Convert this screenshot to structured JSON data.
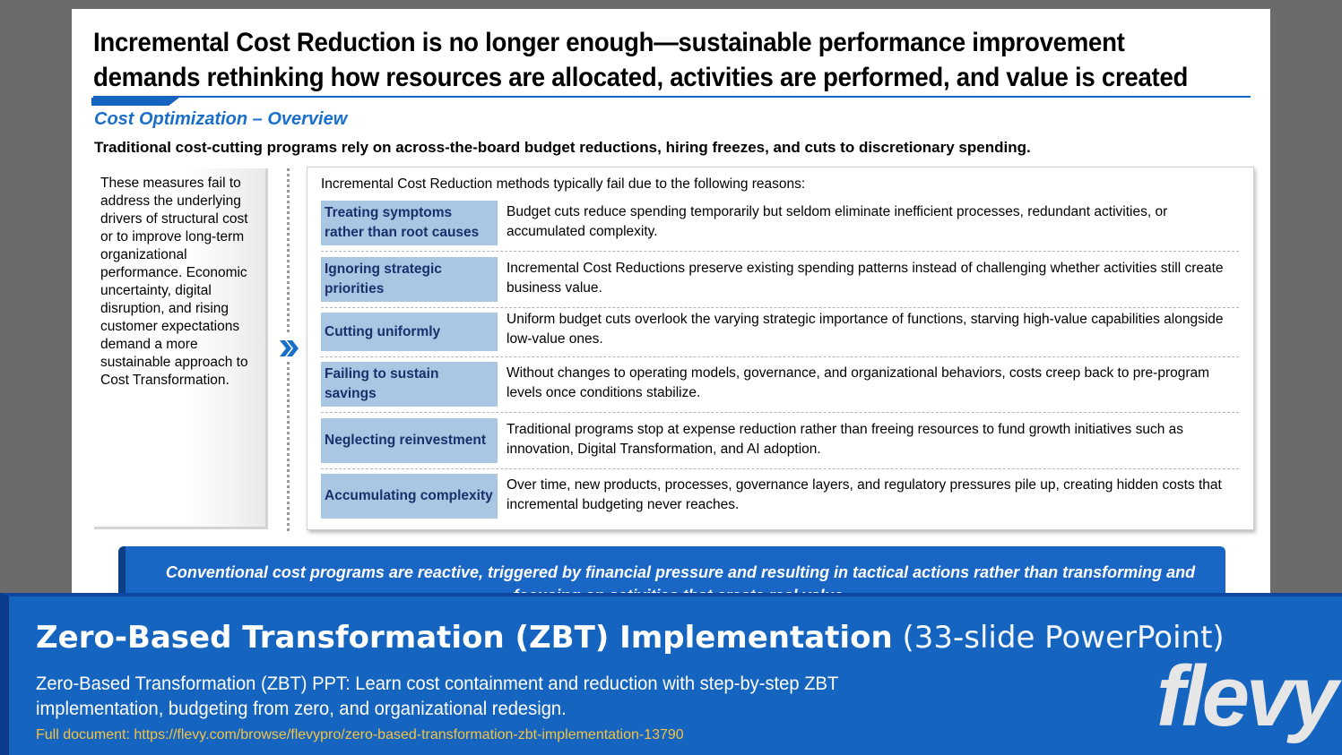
{
  "slide": {
    "headline_line1": "Incremental Cost Reduction is no longer enough—sustainable performance improvement",
    "headline_line2": "demands rethinking how resources are allocated, activities are performed, and value is created",
    "subtitle": "Cost Optimization – Overview",
    "lead": "Traditional cost-cutting programs rely on across-the-board budget reductions, hiring freezes, and cuts to discretionary spending.",
    "left_text": "These measures fail to address the underlying drivers of structural cost or to improve long-term organizational performance. Economic uncertainty, digital disruption, and rising customer expectations demand a more sustainable approach to Cost Transformation.",
    "right_intro": "Incremental Cost Reduction methods typically fail due to the following reasons:",
    "reasons": [
      {
        "label": "Treating symptoms rather than root causes",
        "desc": "Budget cuts reduce spending temporarily but seldom eliminate inefficient processes, redundant activities, or accumulated complexity."
      },
      {
        "label": "Ignoring strategic priorities",
        "desc": "Incremental Cost Reductions preserve existing spending patterns instead of challenging whether activities still create business value."
      },
      {
        "label": "Cutting uniformly",
        "desc": "Uniform budget cuts overlook the varying strategic importance of functions, starving high-value capabilities alongside low-value ones."
      },
      {
        "label": "Failing to sustain savings",
        "desc": "Without changes to operating models, governance, and organizational behaviors, costs creep back to pre-program levels once conditions stabilize."
      },
      {
        "label": "Neglecting reinvestment",
        "desc": "Traditional programs stop at expense reduction rather than freeing resources to fund growth initiatives such as innovation, Digital Transformation, and AI adoption."
      },
      {
        "label": "Accumulating complexity",
        "desc": "Over time, new products, processes, governance layers, and regulatory pressures pile up, creating hidden costs that incremental budgeting never reaches."
      }
    ],
    "callout": "Conventional cost programs are reactive, triggered by financial pressure and resulting in tactical actions rather than transforming and focusing on activities that create real value."
  },
  "banner": {
    "title_bold": "Zero-Based Transformation (ZBT) Implementation",
    "title_light": "(33-slide PowerPoint)",
    "description": "Zero-Based Transformation (ZBT) PPT: Learn cost containment and reduction with step-by-step ZBT implementation, budgeting from zero, and organizational redesign.",
    "link": "Full document: https://flevy.com/browse/flevypro/zero-based-transformation-zbt-implementation-13790",
    "logo": "flevy"
  },
  "colors": {
    "accent": "#1565c0",
    "label_fill": "#a9c7e3",
    "link": "#f5c242"
  }
}
